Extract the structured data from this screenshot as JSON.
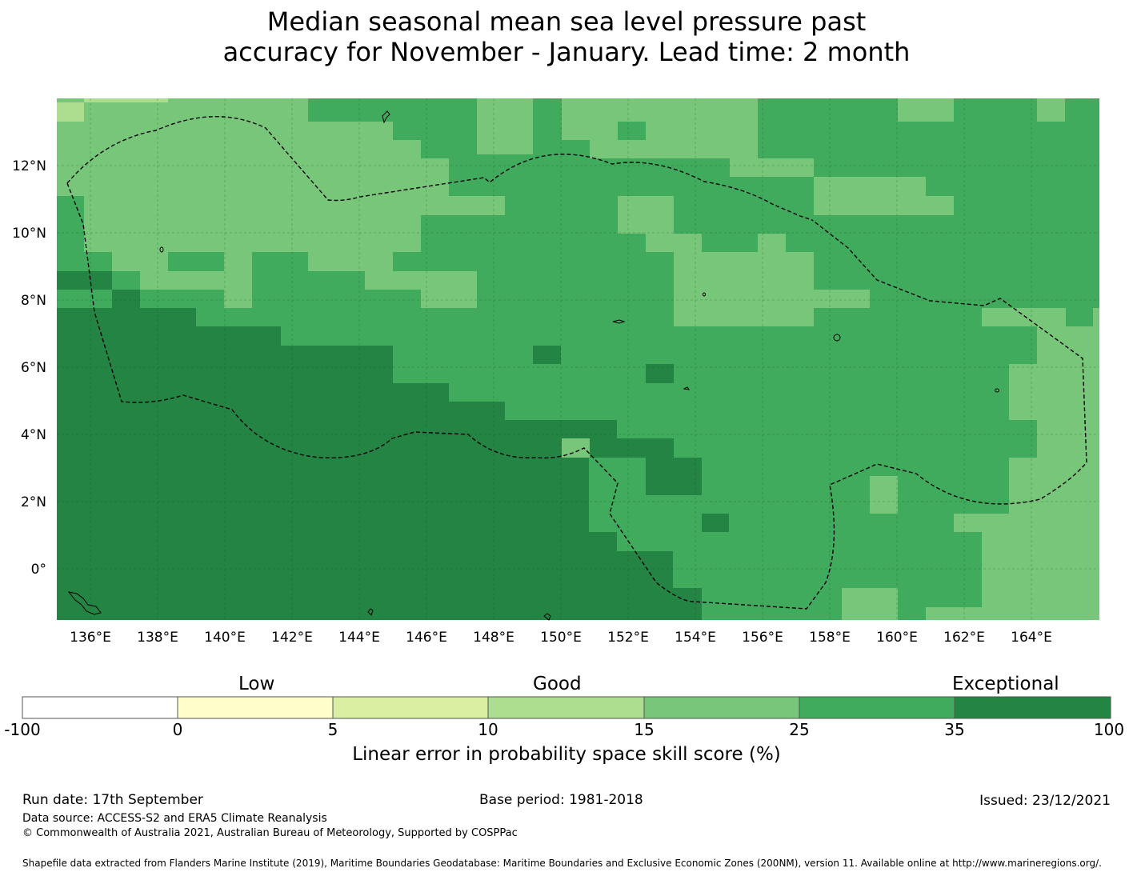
{
  "title": {
    "line1": "Median seasonal mean sea level pressure past",
    "line2": "accuracy for November - January. Lead time: 2 month"
  },
  "map": {
    "lon_range": [
      135,
      166
    ],
    "lat_range": [
      -1.5,
      14
    ],
    "lon_ticks": [
      "136°E",
      "138°E",
      "140°E",
      "142°E",
      "144°E",
      "146°E",
      "148°E",
      "150°E",
      "152°E",
      "154°E",
      "156°E",
      "158°E",
      "160°E",
      "162°E",
      "164°E"
    ],
    "lat_ticks": [
      "12°N",
      "10°N",
      "8°N",
      "6°N",
      "4°N",
      "2°N",
      "0°"
    ],
    "colors": {
      "c15_25": "#78c679",
      "c25_35": "#41ab5d",
      "c35_100": "#238443",
      "c10_15": "#addd8e",
      "boundary": "#000000"
    },
    "regions": [
      "Federated States of Micronesia EEZ (dashed boundary)",
      "Marshall Islands EEZ (dashed boundary)"
    ]
  },
  "colorbar": {
    "category_labels": [
      "Low",
      "Good",
      "Exceptional"
    ],
    "ticks": [
      "-100",
      "0",
      "5",
      "10",
      "15",
      "25",
      "35",
      "100"
    ],
    "colors": [
      "#ffffff",
      "#ffffcc",
      "#d9f0a3",
      "#addd8e",
      "#78c679",
      "#41ab5d",
      "#238443"
    ],
    "title": "Linear error in probability space skill score (%)"
  },
  "footer": {
    "run_date": "Run date: 17th September",
    "base_period": "Base period: 1981-2018",
    "issued": "Issued: 23/12/2021",
    "data_source": "Data source: ACCESS-S2 and ERA5 Climate Reanalysis",
    "copyright": "© Commonwealth of Australia 2021, Australian Bureau of Meteorology, Supported by COSPPac",
    "shapefile": "Shapefile data extracted from Flanders Marine Institute (2019), Maritime Boundaries Geodatabase: Maritime Boundaries and Exclusive Economic Zones (200NM), version 11. Available online at http://www.marineregions.org/."
  }
}
